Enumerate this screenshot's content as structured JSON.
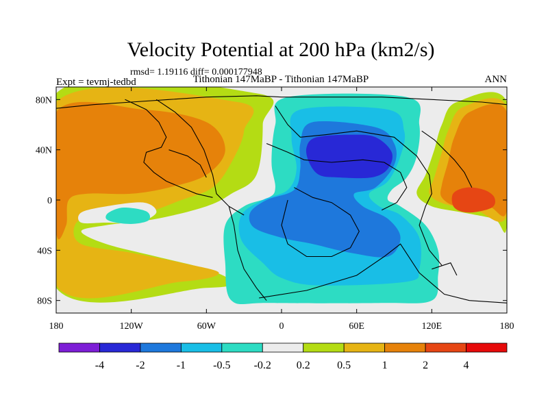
{
  "chart_data": {
    "type": "heatmap",
    "title": "Velocity Potential at 200 hPa (km2/s)",
    "stats_label": "rmsd= 1.19116 diff= 0.000177948",
    "left_label": "Expt = tevmj-tedbd",
    "center_label": "Tithonian 147MaBP - Tithonian 147MaBP",
    "right_label": "ANN",
    "x_ticks": [
      "180",
      "120W",
      "60W",
      "0",
      "60E",
      "120E",
      "180"
    ],
    "x_tick_values": [
      -180,
      -120,
      -60,
      0,
      60,
      120,
      180
    ],
    "y_ticks": [
      "80N",
      "40N",
      "0",
      "40S",
      "80S"
    ],
    "y_tick_values": [
      80,
      40,
      0,
      -40,
      -80
    ],
    "xlim": [
      -180,
      180
    ],
    "ylim": [
      -90,
      90
    ],
    "colorbar_levels": [
      "-4",
      "-2",
      "-1",
      "-0.5",
      "-0.2",
      "0.2",
      "0.5",
      "1",
      "2",
      "4"
    ],
    "colorbar_colors": [
      "#7d1ed6",
      "#2828d6",
      "#1e78dc",
      "#19bee6",
      "#2ddcc3",
      "#ececec",
      "#b4dc14",
      "#e6b414",
      "#e6820a",
      "#e64614",
      "#e60a0a"
    ],
    "regions": [
      {
        "name": "positive-west-band",
        "level": "0.2 to 0.5",
        "color": "#b4dc14",
        "points": [
          [
            -180,
            85
          ],
          [
            -20,
            85
          ],
          [
            -15,
            60
          ],
          [
            -20,
            20
          ],
          [
            -40,
            5
          ],
          [
            -60,
            -5
          ],
          [
            -100,
            -15
          ],
          [
            -140,
            -20
          ],
          [
            -160,
            -25
          ],
          [
            -140,
            -35
          ],
          [
            -100,
            -45
          ],
          [
            -60,
            -55
          ],
          [
            -40,
            -65
          ],
          [
            -60,
            -70
          ],
          [
            -180,
            -70
          ]
        ]
      },
      {
        "name": "positive-west-1",
        "level": "0.5 to 1",
        "color": "#e6b414",
        "points": [
          [
            -180,
            78
          ],
          [
            -35,
            78
          ],
          [
            -30,
            55
          ],
          [
            -40,
            30
          ],
          [
            -55,
            10
          ],
          [
            -80,
            0
          ],
          [
            -110,
            -10
          ],
          [
            -150,
            -12
          ],
          [
            -165,
            -20
          ],
          [
            -160,
            -35
          ],
          [
            -120,
            -42
          ],
          [
            -80,
            -50
          ],
          [
            -50,
            -58
          ],
          [
            -80,
            -65
          ],
          [
            -180,
            -68
          ]
        ]
      },
      {
        "name": "positive-west-2",
        "level": "1 to 2",
        "color": "#e6820a",
        "points": [
          [
            -180,
            70
          ],
          [
            -110,
            72
          ],
          [
            -60,
            62
          ],
          [
            -45,
            40
          ],
          [
            -60,
            20
          ],
          [
            -90,
            10
          ],
          [
            -120,
            5
          ],
          [
            -155,
            5
          ],
          [
            -170,
            0
          ],
          [
            -172,
            -20
          ],
          [
            -180,
            -25
          ]
        ]
      },
      {
        "name": "positive-east-band",
        "level": "0.2 to 0.5",
        "color": "#b4dc14",
        "points": [
          [
            180,
            78
          ],
          [
            140,
            78
          ],
          [
            128,
            60
          ],
          [
            122,
            40
          ],
          [
            115,
            20
          ],
          [
            108,
            5
          ],
          [
            120,
            -5
          ],
          [
            145,
            -10
          ],
          [
            170,
            -15
          ],
          [
            180,
            -20
          ]
        ]
      },
      {
        "name": "positive-east-1",
        "level": "0.5 to 1",
        "color": "#e6b414",
        "points": [
          [
            180,
            74
          ],
          [
            145,
            74
          ],
          [
            133,
            55
          ],
          [
            128,
            38
          ],
          [
            122,
            18
          ],
          [
            118,
            5
          ],
          [
            130,
            -3
          ],
          [
            155,
            -8
          ],
          [
            180,
            -12
          ]
        ]
      },
      {
        "name": "positive-east-2",
        "level": "1 to 2",
        "color": "#e6820a",
        "points": [
          [
            180,
            70
          ],
          [
            150,
            70
          ],
          [
            138,
            50
          ],
          [
            133,
            30
          ],
          [
            128,
            12
          ],
          [
            128,
            2
          ],
          [
            140,
            -5
          ],
          [
            165,
            -5
          ],
          [
            180,
            -8
          ]
        ]
      },
      {
        "name": "positive-east-3",
        "level": "2 to 4",
        "color": "#e64614",
        "points": [
          [
            137,
            5
          ],
          [
            148,
            10
          ],
          [
            162,
            8
          ],
          [
            170,
            2
          ],
          [
            168,
            -6
          ],
          [
            150,
            -10
          ],
          [
            138,
            -6
          ]
        ]
      },
      {
        "name": "negative-1",
        "level": "-0.5 to -0.2",
        "color": "#2ddcc3",
        "points": [
          [
            5,
            82
          ],
          [
            100,
            82
          ],
          [
            110,
            60
          ],
          [
            108,
            35
          ],
          [
            100,
            18
          ],
          [
            88,
            8
          ],
          [
            85,
            0
          ],
          [
            95,
            -5
          ],
          [
            115,
            -20
          ],
          [
            125,
            -40
          ],
          [
            125,
            -60
          ],
          [
            120,
            -80
          ],
          [
            80,
            -82
          ],
          [
            -10,
            -82
          ],
          [
            -40,
            -80
          ],
          [
            -45,
            -50
          ],
          [
            -45,
            -20
          ],
          [
            -30,
            -5
          ],
          [
            -10,
            2
          ],
          [
            -5,
            10
          ],
          [
            -8,
            30
          ],
          [
            -5,
            60
          ]
        ]
      },
      {
        "name": "negative-2",
        "level": "-1 to -0.5",
        "color": "#19bee6",
        "points": [
          [
            15,
            72
          ],
          [
            85,
            72
          ],
          [
            98,
            55
          ],
          [
            95,
            35
          ],
          [
            85,
            15
          ],
          [
            70,
            5
          ],
          [
            78,
            -5
          ],
          [
            95,
            -12
          ],
          [
            110,
            -30
          ],
          [
            110,
            -55
          ],
          [
            100,
            -65
          ],
          [
            30,
            -68
          ],
          [
            0,
            -62
          ],
          [
            -15,
            -50
          ],
          [
            -32,
            -32
          ],
          [
            -32,
            -12
          ],
          [
            -15,
            0
          ],
          [
            5,
            8
          ],
          [
            12,
            25
          ],
          [
            8,
            50
          ]
        ]
      },
      {
        "name": "negative-3",
        "level": "-2 to -1",
        "color": "#1e78dc",
        "points": [
          [
            25,
            62
          ],
          [
            75,
            58
          ],
          [
            90,
            45
          ],
          [
            90,
            28
          ],
          [
            75,
            10
          ],
          [
            58,
            5
          ],
          [
            65,
            -5
          ],
          [
            85,
            -15
          ],
          [
            95,
            -30
          ],
          [
            85,
            -45
          ],
          [
            55,
            -42
          ],
          [
            25,
            -35
          ],
          [
            0,
            -30
          ],
          [
            -22,
            -22
          ],
          [
            -25,
            -10
          ],
          [
            -12,
            0
          ],
          [
            10,
            8
          ],
          [
            15,
            25
          ],
          [
            15,
            45
          ]
        ]
      },
      {
        "name": "negative-4",
        "level": "-4 to -2",
        "color": "#2828d6",
        "points": [
          [
            28,
            50
          ],
          [
            55,
            52
          ],
          [
            75,
            50
          ],
          [
            88,
            38
          ],
          [
            85,
            25
          ],
          [
            72,
            18
          ],
          [
            45,
            18
          ],
          [
            30,
            20
          ],
          [
            22,
            30
          ],
          [
            20,
            42
          ]
        ]
      },
      {
        "name": "neutral-island",
        "level": "-0.2 to 0.2",
        "color": "#ececec",
        "points": [
          [
            -160,
            -10
          ],
          [
            -140,
            -5
          ],
          [
            -110,
            -2
          ],
          [
            -100,
            -10
          ],
          [
            -115,
            -18
          ],
          [
            -140,
            -18
          ],
          [
            -160,
            -18
          ]
        ]
      },
      {
        "name": "negative-island",
        "level": "-0.5 to -0.2",
        "color": "#2ddcc3",
        "points": [
          [
            -138,
            -10
          ],
          [
            -126,
            -6
          ],
          [
            -108,
            -9
          ],
          [
            -106,
            -16
          ],
          [
            -118,
            -19
          ],
          [
            -132,
            -18
          ],
          [
            -140,
            -15
          ]
        ]
      }
    ],
    "coastlines": [
      [
        [
          -180,
          73
        ],
        [
          -150,
          76
        ],
        [
          -120,
          78
        ],
        [
          -90,
          80
        ],
        [
          -60,
          82
        ],
        [
          -20,
          83
        ],
        [
          0,
          82
        ],
        [
          40,
          82
        ],
        [
          80,
          82
        ],
        [
          120,
          80
        ],
        [
          160,
          78
        ],
        [
          180,
          76
        ]
      ],
      [
        [
          -125,
          80
        ],
        [
          -108,
          72
        ],
        [
          -98,
          62
        ],
        [
          -92,
          50
        ],
        [
          -96,
          42
        ],
        [
          -108,
          38
        ],
        [
          -110,
          30
        ],
        [
          -102,
          22
        ],
        [
          -92,
          15
        ]
      ],
      [
        [
          -100,
          80
        ],
        [
          -85,
          70
        ],
        [
          -72,
          58
        ],
        [
          -62,
          40
        ],
        [
          -55,
          20
        ],
        [
          -52,
          5
        ],
        [
          -42,
          -5
        ],
        [
          -30,
          -12
        ]
      ],
      [
        [
          -92,
          15
        ],
        [
          -80,
          10
        ],
        [
          -68,
          5
        ],
        [
          -55,
          2
        ]
      ],
      [
        [
          -42,
          -5
        ],
        [
          -38,
          -20
        ],
        [
          -35,
          -40
        ],
        [
          -30,
          -55
        ],
        [
          -20,
          -70
        ],
        [
          -12,
          -80
        ]
      ],
      [
        [
          -18,
          -78
        ],
        [
          20,
          -72
        ],
        [
          60,
          -60
        ],
        [
          82,
          -45
        ],
        [
          95,
          -35
        ],
        [
          110,
          -58
        ],
        [
          130,
          -75
        ],
        [
          150,
          -80
        ],
        [
          180,
          -82
        ]
      ],
      [
        [
          -5,
          75
        ],
        [
          5,
          60
        ],
        [
          15,
          50
        ],
        [
          35,
          52
        ],
        [
          60,
          55
        ],
        [
          90,
          50
        ],
        [
          108,
          35
        ],
        [
          118,
          20
        ],
        [
          120,
          5
        ],
        [
          115,
          -5
        ],
        [
          110,
          -20
        ],
        [
          118,
          -40
        ],
        [
          128,
          -52
        ]
      ],
      [
        [
          -12,
          45
        ],
        [
          5,
          38
        ],
        [
          18,
          32
        ],
        [
          40,
          30
        ],
        [
          65,
          32
        ],
        [
          82,
          30
        ],
        [
          95,
          22
        ],
        [
          100,
          10
        ],
        [
          92,
          -2
        ],
        [
          80,
          -8
        ]
      ],
      [
        [
          10,
          10
        ],
        [
          25,
          2
        ],
        [
          40,
          -2
        ],
        [
          55,
          -12
        ],
        [
          62,
          -25
        ],
        [
          55,
          -38
        ],
        [
          40,
          -45
        ],
        [
          20,
          -45
        ],
        [
          5,
          -35
        ],
        [
          0,
          -20
        ],
        [
          5,
          0
        ]
      ],
      [
        [
          112,
          55
        ],
        [
          122,
          48
        ],
        [
          130,
          40
        ],
        [
          138,
          32
        ],
        [
          146,
          22
        ],
        [
          152,
          10
        ]
      ],
      [
        [
          120,
          -55
        ],
        [
          135,
          -50
        ],
        [
          140,
          -60
        ]
      ],
      [
        [
          -90,
          40
        ],
        [
          -75,
          35
        ],
        [
          -65,
          28
        ],
        [
          -60,
          18
        ]
      ]
    ]
  }
}
